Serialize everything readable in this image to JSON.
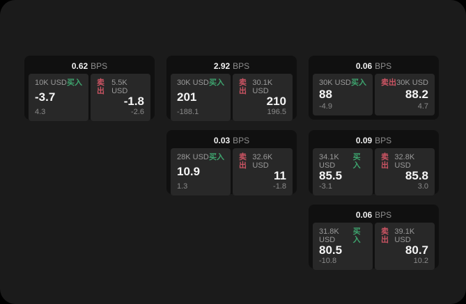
{
  "labels": {
    "buy": "买入",
    "sell": "卖出"
  },
  "units": {
    "bps": "BPS",
    "currency": "USD"
  },
  "colors": {
    "page_background": "#1b1b1b",
    "card_background": "#101010",
    "panel_background": "#282828",
    "buy_green": "#3ea46e",
    "sell_red": "#cb5463",
    "primary_text": "#f5f5f5",
    "muted_text": "#8f8f8f"
  },
  "cards": [
    {
      "grid": {
        "col": 1,
        "row": 1
      },
      "bps": "0.62",
      "buy": {
        "amount": "10K USD",
        "price": "-3.7",
        "delta": "4.3"
      },
      "sell": {
        "amount": "5.5K USD",
        "price": "-1.8",
        "delta": "-2.6"
      }
    },
    {
      "grid": {
        "col": 2,
        "row": 1
      },
      "bps": "2.92",
      "buy": {
        "amount": "30K USD",
        "price": "201",
        "delta": "-188.1"
      },
      "sell": {
        "amount": "30.1K USD",
        "price": "210",
        "delta": "196.5"
      }
    },
    {
      "grid": {
        "col": 3,
        "row": 1
      },
      "bps": "0.06",
      "buy": {
        "amount": "30K USD",
        "price": "88",
        "delta": "-4.9"
      },
      "sell": {
        "amount": "30K USD",
        "price": "88.2",
        "delta": "4.7"
      }
    },
    {
      "grid": {
        "col": 2,
        "row": 2
      },
      "bps": "0.03",
      "buy": {
        "amount": "28K USD",
        "price": "10.9",
        "delta": "1.3"
      },
      "sell": {
        "amount": "32.6K USD",
        "price": "11",
        "delta": "-1.8"
      }
    },
    {
      "grid": {
        "col": 3,
        "row": 2
      },
      "bps": "0.09",
      "buy": {
        "amount": "34.1K USD",
        "price": "85.5",
        "delta": "-3.1"
      },
      "sell": {
        "amount": "32.8K USD",
        "price": "85.8",
        "delta": "3.0"
      }
    },
    {
      "grid": {
        "col": 3,
        "row": 3
      },
      "bps": "0.06",
      "buy": {
        "amount": "31.8K USD",
        "price": "80.5",
        "delta": "-10.8"
      },
      "sell": {
        "amount": "39.1K USD",
        "price": "80.7",
        "delta": "10.2"
      }
    }
  ]
}
